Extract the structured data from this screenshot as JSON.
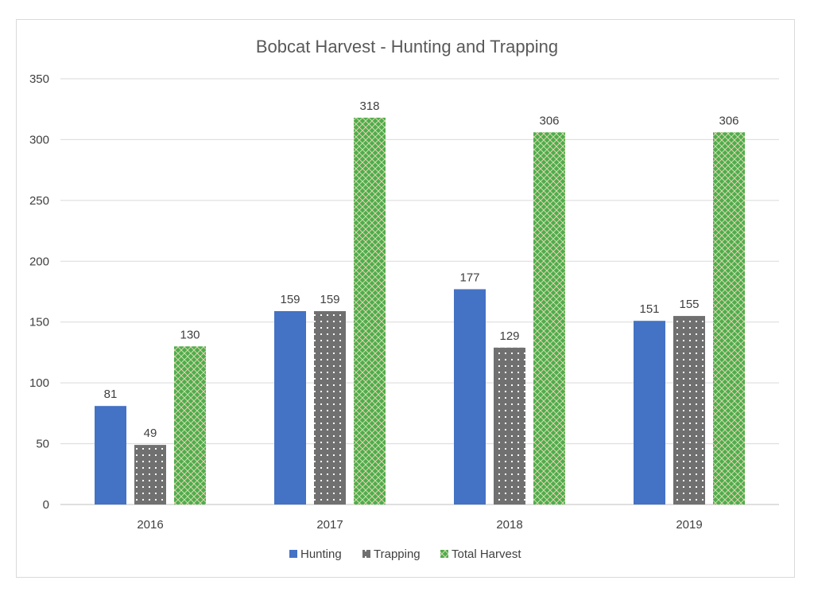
{
  "chart_data": {
    "type": "bar",
    "title": "Bobcat Harvest - Hunting and Trapping",
    "xlabel": "",
    "ylabel": "",
    "categories": [
      "2016",
      "2017",
      "2018",
      "2019"
    ],
    "series": [
      {
        "name": "Hunting",
        "values": [
          81,
          159,
          177,
          151
        ],
        "color": "#4472c4",
        "pattern": "solid"
      },
      {
        "name": "Trapping",
        "values": [
          49,
          159,
          129,
          155
        ],
        "color": "#707070",
        "pattern": "dots"
      },
      {
        "name": "Total Harvest",
        "values": [
          130,
          318,
          306,
          306
        ],
        "color": "#4cae4c",
        "pattern": "diamond-lattice"
      }
    ],
    "ylim": [
      0,
      350
    ],
    "yticks": [
      "0",
      "50",
      "100",
      "150",
      "200",
      "250",
      "300",
      "350"
    ],
    "grid": true,
    "legend_position": "bottom",
    "data_labels": true
  }
}
